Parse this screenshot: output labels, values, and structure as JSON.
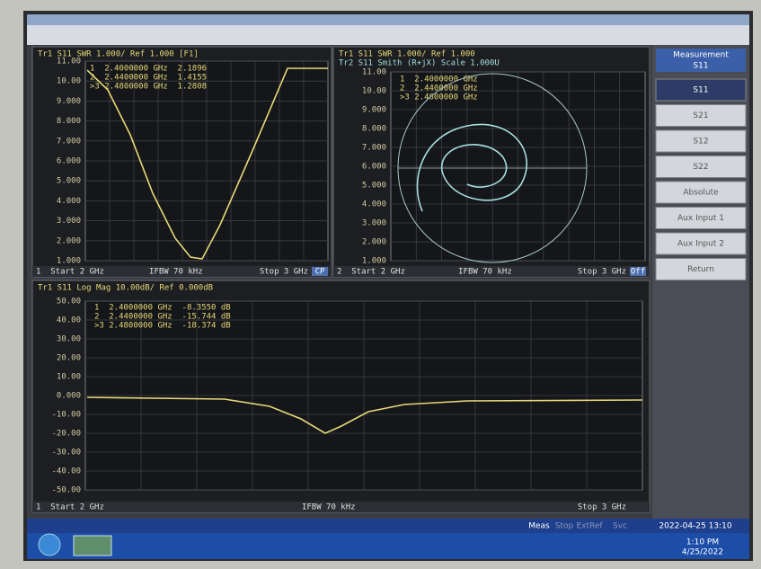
{
  "panels": [
    {
      "header": [
        "Tr1 S11 SWR 1.000/ Ref 1.000 [F1]"
      ],
      "markers": [
        "1  2.4000000 GHz  2.1896",
        "2  2.4400000 GHz  1.4155",
        ">3 2.4800000 GHz  1.2808"
      ],
      "yticks": [
        "11.00",
        "10.00",
        "9.000",
        "8.000",
        "7.000",
        "6.000",
        "5.000",
        "4.000",
        "3.000",
        "2.000",
        "1.000"
      ],
      "footer": [
        "1  Start 2 GHz",
        "IFBW 70 kHz",
        "Stop 3 GHz",
        "CP"
      ]
    },
    {
      "header": [
        "Tr1 S11 SWR 1.000/ Ref 1.000",
        "Tr2 S11 Smith (R+jX) Scale 1.000U"
      ],
      "markers": [
        "1  2.4000000 GHz",
        "2  2.4400000 GHz",
        ">3 2.4800000 GHz"
      ],
      "yticks": [
        "11.00",
        "10.00",
        "9.000",
        "8.000",
        "7.000",
        "6.000",
        "5.000",
        "4.000",
        "3.000",
        "2.000",
        "1.000"
      ],
      "footer": [
        "2  Start 2 GHz",
        "IFBW 70 kHz",
        "Stop 3 GHz",
        "Off"
      ]
    },
    {
      "header": [
        "Tr1 S11 Log Mag 10.00dB/ Ref 0.000dB"
      ],
      "markers": [
        "1  2.4000000 GHz  -8.3550 dB",
        "2  2.4400000 GHz  -15.744 dB",
        ">3 2.4800000 GHz  -18.374 dB"
      ],
      "yticks": [
        "50.00",
        "40.00",
        "30.00",
        "20.00",
        "10.00",
        "0.000",
        "-10.00",
        "-20.00",
        "-30.00",
        "-40.00",
        "-50.00"
      ],
      "footer": [
        "1  Start 2 GHz",
        "IFBW 70 kHz",
        "Stop 3 GHz"
      ]
    }
  ],
  "softkeys": {
    "title": "Measurement",
    "current": "S11",
    "items": [
      "S11",
      "S21",
      "S12",
      "S22",
      "Absolute",
      "Aux Input 1",
      "Aux Input 2",
      "Return"
    ]
  },
  "status": [
    "Meas",
    "Stop",
    "ExtRef",
    "Svc",
    "2022-04-25 13:10"
  ],
  "taskbar": {
    "time": "1:10 PM",
    "date": "4/25/2022"
  }
}
